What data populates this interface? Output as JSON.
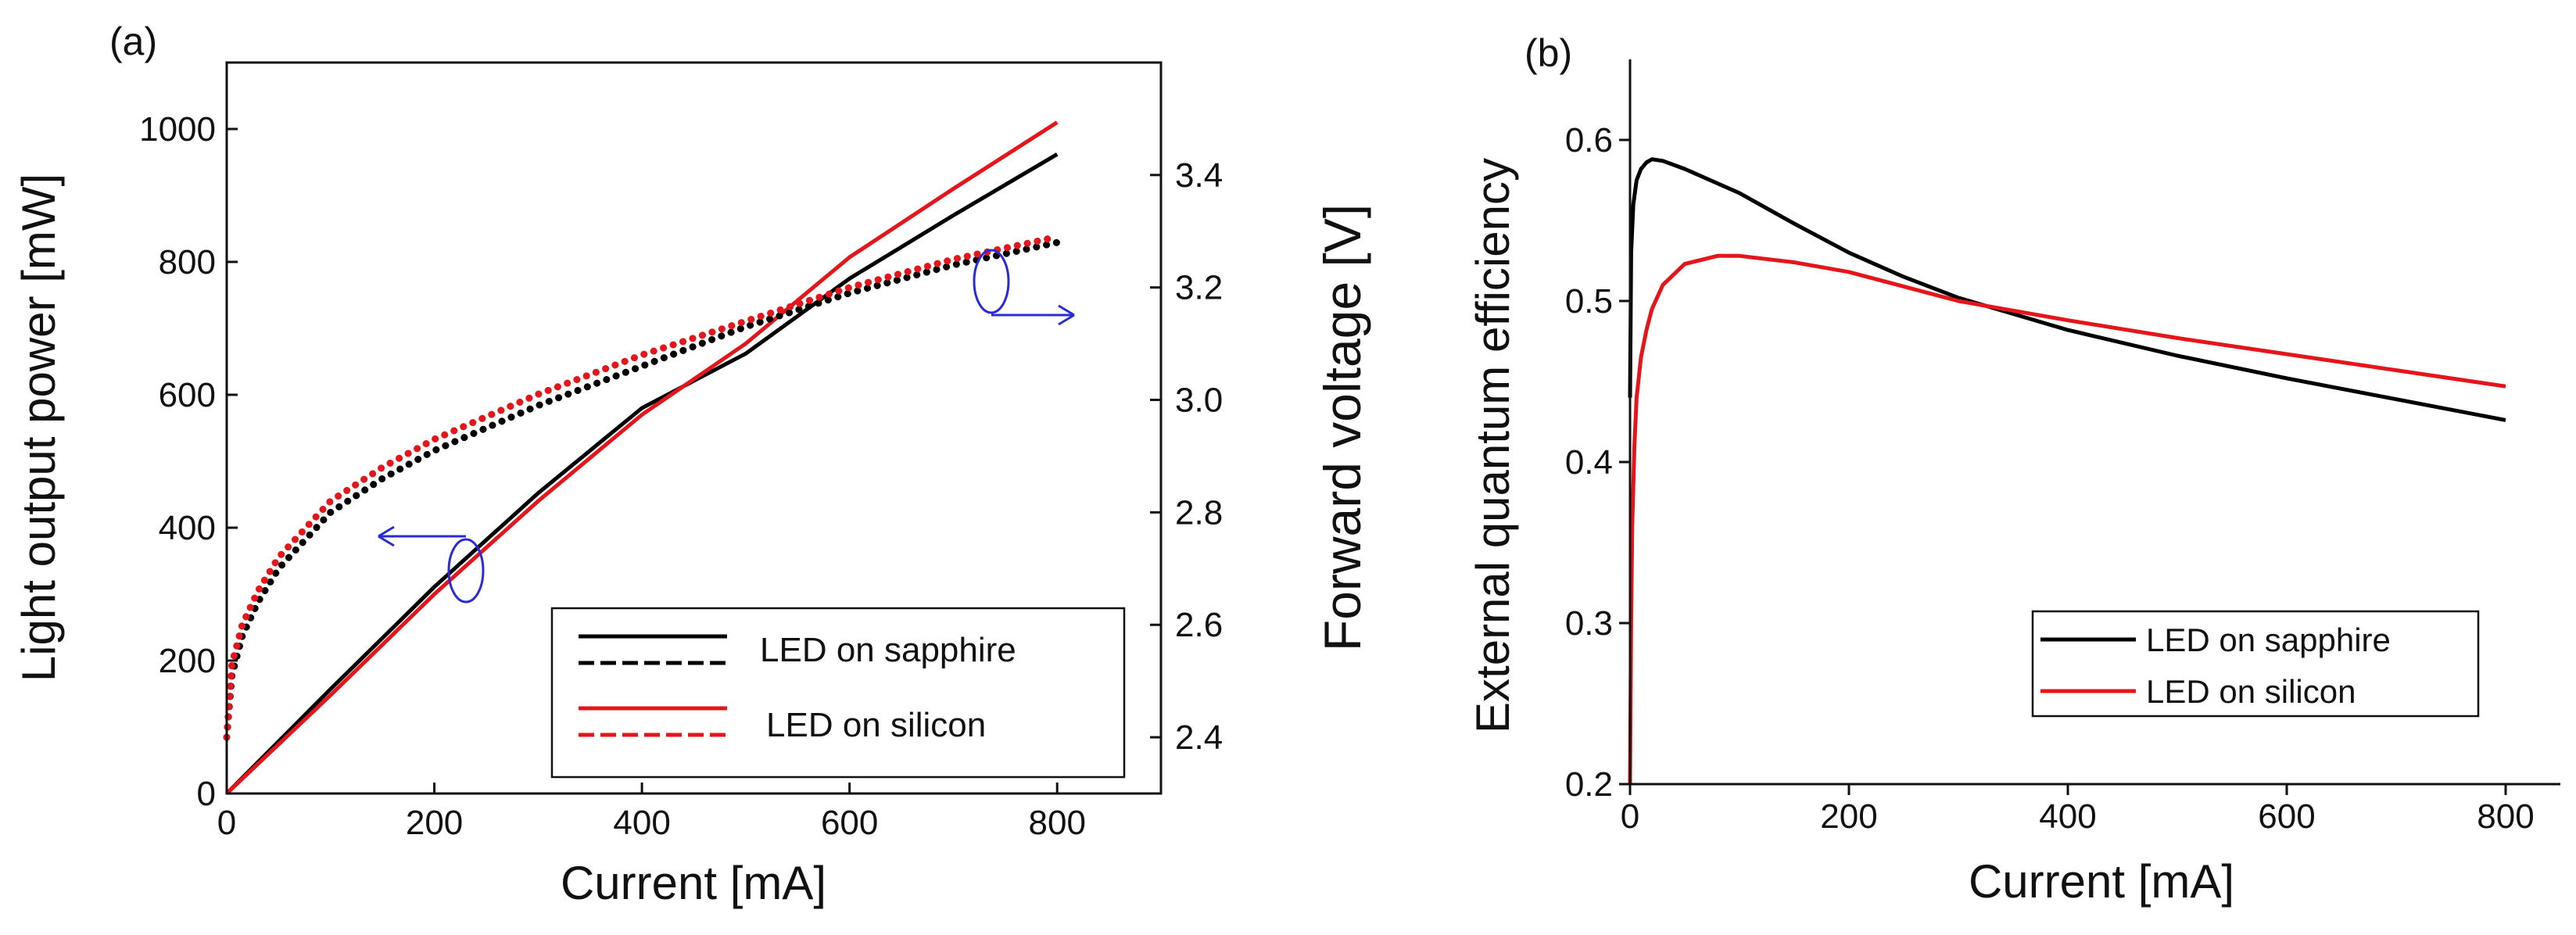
{
  "chart_data": [
    {
      "panel": "(a)",
      "type": "line",
      "title": "",
      "xlabel": "Current [mA]",
      "ylabel": "Light output power [mW]",
      "y2label": "Forward voltage [V]",
      "xlim": [
        0,
        900
      ],
      "ylim": [
        0,
        1100
      ],
      "y2lim": [
        2.3,
        3.6
      ],
      "xticks": [
        0,
        200,
        400,
        600,
        800
      ],
      "yticks": [
        0,
        200,
        400,
        600,
        800,
        1000
      ],
      "y2ticks": [
        2.4,
        2.6,
        2.8,
        3.0,
        3.2,
        3.4
      ],
      "grid": false,
      "legend_position": "bottom-right",
      "series": [
        {
          "name": "LED on sapphire",
          "axis": "left",
          "style": "solid",
          "color": "#000000",
          "x": [
            0,
            100,
            200,
            300,
            400,
            500,
            600,
            700,
            800
          ],
          "y": [
            0,
            157,
            311,
            452,
            580,
            662,
            775,
            870,
            962
          ]
        },
        {
          "name": "LED on silicon",
          "axis": "left",
          "style": "solid",
          "color": "#e4161b",
          "x": [
            0,
            100,
            200,
            300,
            400,
            500,
            600,
            700,
            800
          ],
          "y": [
            0,
            148,
            300,
            440,
            570,
            677,
            807,
            910,
            1010
          ]
        },
        {
          "name": "LED on sapphire",
          "axis": "right",
          "style": "dotted",
          "color": "#000000",
          "x": [
            0,
            5,
            15,
            30,
            50,
            100,
            150,
            200,
            300,
            400,
            500,
            600,
            700,
            800
          ],
          "y": [
            2.4,
            2.51,
            2.58,
            2.64,
            2.7,
            2.8,
            2.86,
            2.91,
            2.99,
            3.06,
            3.13,
            3.19,
            3.24,
            3.28
          ]
        },
        {
          "name": "LED on silicon",
          "axis": "right",
          "style": "dotted",
          "color": "#e4161b",
          "x": [
            0,
            5,
            15,
            30,
            50,
            100,
            150,
            200,
            300,
            400,
            500,
            600,
            700,
            800
          ],
          "y": [
            2.4,
            2.53,
            2.6,
            2.66,
            2.72,
            2.82,
            2.88,
            2.93,
            3.01,
            3.08,
            3.14,
            3.2,
            3.25,
            3.29
          ]
        }
      ]
    },
    {
      "panel": "(b)",
      "type": "line",
      "title": "",
      "xlabel": "Current [mA]",
      "ylabel": "External quantum efficiency",
      "xlim": [
        0,
        850
      ],
      "ylim": [
        0.2,
        0.65
      ],
      "xticks": [
        0,
        200,
        400,
        600,
        800
      ],
      "yticks": [
        0.2,
        0.3,
        0.4,
        0.5,
        0.6
      ],
      "grid": false,
      "legend_position": "bottom-right",
      "series": [
        {
          "name": "LED on sapphire",
          "color": "#000000",
          "x": [
            0,
            1,
            3,
            6,
            10,
            15,
            20,
            30,
            50,
            100,
            150,
            200,
            250,
            300,
            400,
            500,
            600,
            700,
            800
          ],
          "y": [
            0.44,
            0.53,
            0.56,
            0.575,
            0.582,
            0.586,
            0.588,
            0.587,
            0.582,
            0.567,
            0.548,
            0.53,
            0.515,
            0.502,
            0.482,
            0.466,
            0.452,
            0.439,
            0.426
          ]
        },
        {
          "name": "LED on silicon",
          "color": "#e4161b",
          "x": [
            0,
            1,
            2,
            4,
            6,
            10,
            15,
            20,
            30,
            50,
            80,
            100,
            150,
            200,
            300,
            400,
            500,
            600,
            700,
            800
          ],
          "y": [
            0.2,
            0.3,
            0.36,
            0.41,
            0.44,
            0.465,
            0.482,
            0.495,
            0.51,
            0.523,
            0.528,
            0.528,
            0.524,
            0.518,
            0.5,
            0.488,
            0.477,
            0.467,
            0.457,
            0.447
          ]
        }
      ]
    }
  ]
}
